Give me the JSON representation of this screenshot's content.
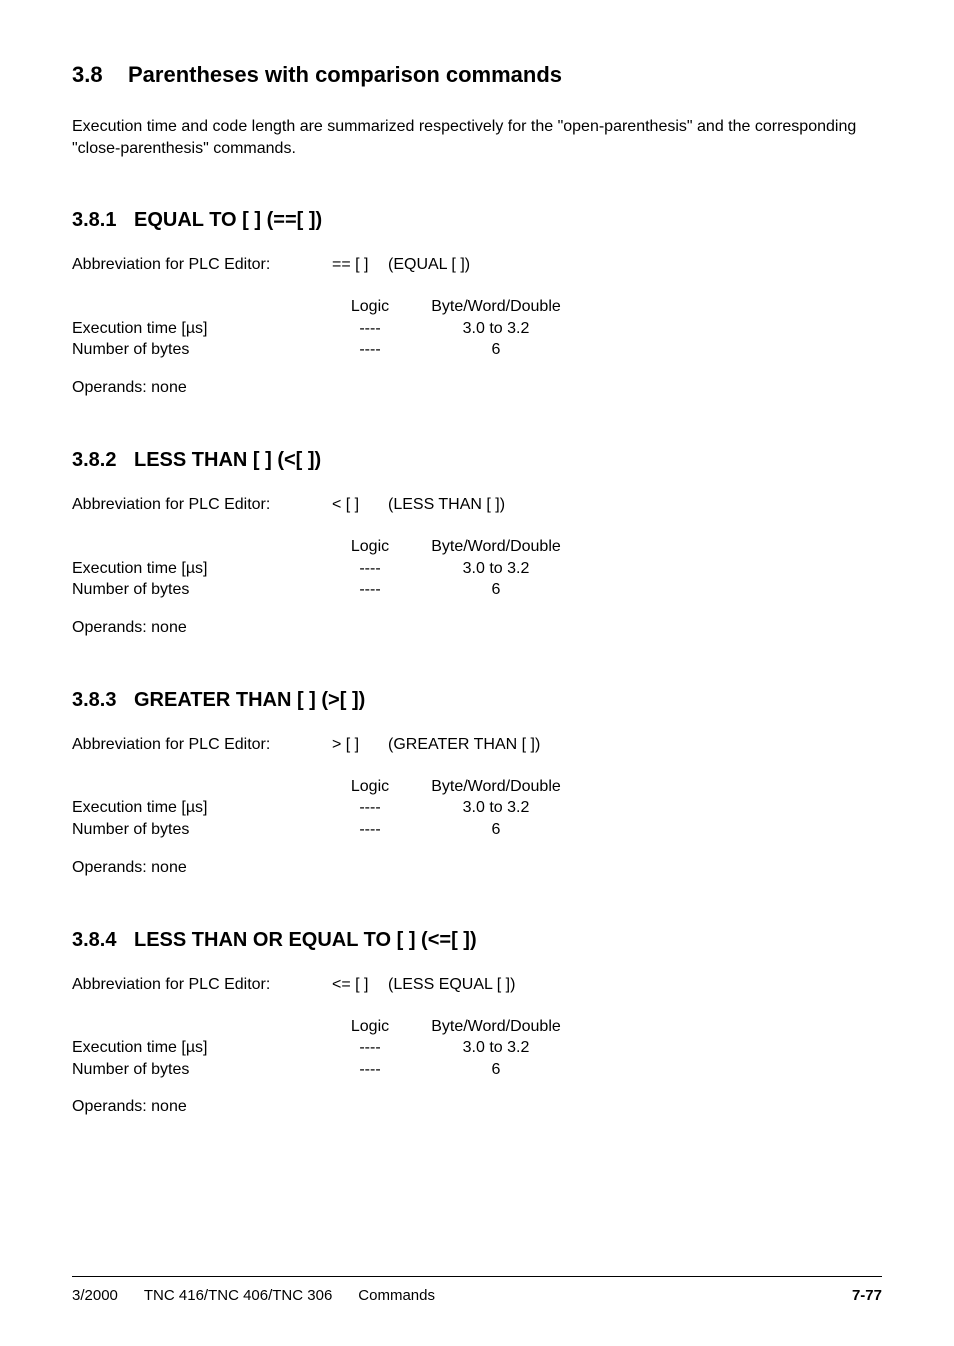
{
  "main": {
    "number": "3.8",
    "title": "Parentheses with comparison commands",
    "intro": "Execution time and code length are summarized respectively for the \"open-parenthesis\" and the corresponding \"close-parenthesis\" commands."
  },
  "sections": [
    {
      "number": "3.8.1",
      "title": "EQUAL TO [ ]  (==[ ])",
      "abbr_label": "Abbreviation for PLC Editor:",
      "abbr_code": "== [ ]",
      "abbr_desc": "(EQUAL [ ])",
      "table_header_c2": "Logic",
      "table_header_c3": "Byte/Word/Double",
      "exec_label": "Execution time [µs]",
      "exec_c2": "----",
      "exec_c3": "3.0 to 3.2",
      "bytes_label": "Number of bytes",
      "bytes_c2": "----",
      "bytes_c3": "6",
      "operands": "Operands: none"
    },
    {
      "number": "3.8.2",
      "title": "LESS THAN [ ]  (<[ ])",
      "abbr_label": "Abbreviation for PLC Editor:",
      "abbr_code": "< [ ]",
      "abbr_desc": "(LESS THAN [ ])",
      "table_header_c2": "Logic",
      "table_header_c3": "Byte/Word/Double",
      "exec_label": "Execution time [µs]",
      "exec_c2": "----",
      "exec_c3": "3.0 to 3.2",
      "bytes_label": "Number of bytes",
      "bytes_c2": "----",
      "bytes_c3": "6",
      "operands": "Operands: none"
    },
    {
      "number": "3.8.3",
      "title": "GREATER THAN [ ]  (>[ ])",
      "abbr_label": "Abbreviation for PLC Editor:",
      "abbr_code": "> [ ]",
      "abbr_desc": "(GREATER THAN [ ])",
      "table_header_c2": "Logic",
      "table_header_c3": "Byte/Word/Double",
      "exec_label": "Execution time [µs]",
      "exec_c2": "----",
      "exec_c3": "3.0 to 3.2",
      "bytes_label": "Number of bytes",
      "bytes_c2": "----",
      "bytes_c3": "6",
      "operands": "Operands: none"
    },
    {
      "number": "3.8.4",
      "title": "LESS THAN OR EQUAL TO [ ]  (<=[ ])",
      "abbr_label": "Abbreviation for PLC Editor:",
      "abbr_code": "<= [ ]",
      "abbr_desc": "(LESS EQUAL [ ])",
      "table_header_c2": "Logic",
      "table_header_c3": "Byte/Word/Double",
      "exec_label": "Execution time [µs]",
      "exec_c2": "----",
      "exec_c3": "3.0 to 3.2",
      "bytes_label": "Number of bytes",
      "bytes_c2": "----",
      "bytes_c3": "6",
      "operands": "Operands: none"
    }
  ],
  "footer": {
    "date": "3/2000",
    "model": "TNC 416/TNC 406/TNC 306",
    "section": "Commands",
    "page": "7-77"
  }
}
